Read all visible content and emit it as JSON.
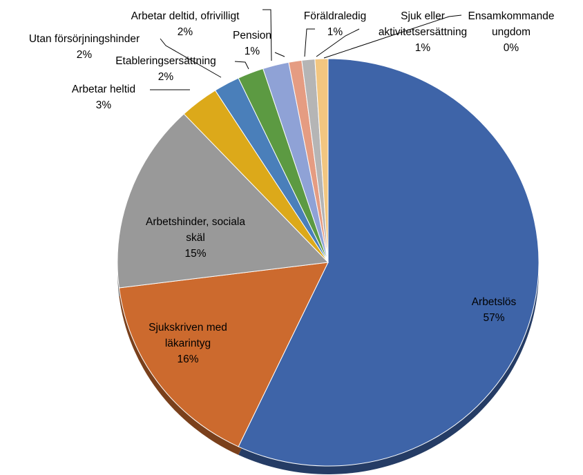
{
  "chart_data": {
    "type": "pie",
    "categories": [
      "Arbetslös",
      "Sjukskriven med läkarintyg",
      "Arbetshinder, sociala skäl",
      "Arbetar heltid",
      "Utan försörjningshinder",
      "Etableringsersättning",
      "Arbetar deltid, ofrivilligt",
      "Pension",
      "Föräldraledig",
      "Sjuk eller aktivitetsersättning",
      "Ensamkommande ungdom"
    ],
    "values": [
      57,
      16,
      15,
      3,
      2,
      2,
      2,
      1,
      1,
      1,
      0
    ],
    "value_labels": [
      "57%",
      "16%",
      "15%",
      "3%",
      "2%",
      "2%",
      "2%",
      "1%",
      "1%",
      "1%",
      "0%"
    ],
    "colors": [
      "#3e64a8",
      "#cc6a2e",
      "#999999",
      "#dca91a",
      "#4a7fba",
      "#5c9a42",
      "#8fa2d6",
      "#e59c82",
      "#b5b5b5",
      "#f2c680",
      "#a9c1e3"
    ]
  }
}
